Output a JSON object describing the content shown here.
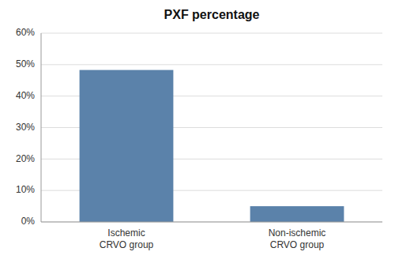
{
  "chart_data": {
    "type": "bar",
    "title": "PXF percentage",
    "categories": [
      "Ischemic\nCRVO group",
      "Non-ischemic\nCRVO group"
    ],
    "values": [
      48.3,
      5.0
    ],
    "color": "#5b82aa",
    "ylim": [
      0,
      60
    ],
    "yticks": [
      {
        "value": 0,
        "label": "0%"
      },
      {
        "value": 10,
        "label": "10%"
      },
      {
        "value": 20,
        "label": "20%"
      },
      {
        "value": 30,
        "label": "30%"
      },
      {
        "value": 40,
        "label": "40%"
      },
      {
        "value": 50,
        "label": "50%"
      },
      {
        "value": 60,
        "label": "60%"
      }
    ],
    "grid": true
  }
}
